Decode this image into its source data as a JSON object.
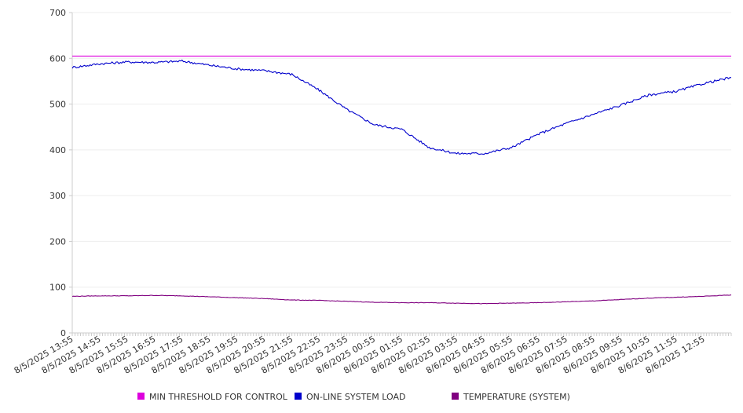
{
  "chart_data": {
    "type": "line",
    "title": "",
    "xlabel": "",
    "ylabel": "",
    "ylim": [
      0,
      700
    ],
    "y_ticks": [
      0,
      100,
      200,
      300,
      400,
      500,
      600,
      700
    ],
    "x_tick_labels": [
      "8/5/2025 13:55",
      "8/5/2025 14:55",
      "8/5/2025 15:55",
      "8/5/2025 16:55",
      "8/5/2025 17:55",
      "8/5/2025 18:55",
      "8/5/2025 19:55",
      "8/5/2025 20:55",
      "8/5/2025 21:55",
      "8/5/2025 22:55",
      "8/5/2025 23:55",
      "8/6/2025 00:55",
      "8/6/2025 01:55",
      "8/6/2025 02:55",
      "8/6/2025 03:55",
      "8/6/2025 04:55",
      "8/6/2025 05:55",
      "8/6/2025 06:55",
      "8/6/2025 07:55",
      "8/6/2025 08:55",
      "8/6/2025 09:55",
      "8/6/2025 10:55",
      "8/6/2025 11:55",
      "8/6/2025 12:55"
    ],
    "x": [
      "8/5/2025 13:55",
      "8/5/2025 14:55",
      "8/5/2025 15:55",
      "8/5/2025 16:55",
      "8/5/2025 17:55",
      "8/5/2025 18:55",
      "8/5/2025 19:55",
      "8/5/2025 20:55",
      "8/5/2025 21:55",
      "8/5/2025 22:55",
      "8/5/2025 23:55",
      "8/6/2025 00:55",
      "8/6/2025 01:55",
      "8/6/2025 02:55",
      "8/6/2025 03:55",
      "8/6/2025 04:55",
      "8/6/2025 05:55",
      "8/6/2025 06:55",
      "8/6/2025 07:55",
      "8/6/2025 08:55",
      "8/6/2025 09:55",
      "8/6/2025 10:55",
      "8/6/2025 11:55",
      "8/6/2025 12:55",
      "8/6/2025 13:55"
    ],
    "series": [
      {
        "name": "MIN THRESHOLD FOR CONTROL",
        "color": "#dd00dd",
        "values": [
          605,
          605,
          605,
          605,
          605,
          605,
          605,
          605,
          605,
          605,
          605,
          605,
          605,
          605,
          605,
          605,
          605,
          605,
          605,
          605,
          605,
          605,
          605,
          605,
          605
        ]
      },
      {
        "name": "ON-LINE SYSTEM LOAD",
        "color": "#0000cc",
        "values": [
          580,
          588,
          592,
          591,
          594,
          585,
          577,
          573,
          565,
          530,
          488,
          455,
          445,
          405,
          392,
          392,
          405,
          435,
          458,
          478,
          498,
          520,
          528,
          545,
          558
        ]
      },
      {
        "name": "TEMPERATURE (SYSTEM)",
        "color": "#800080",
        "values": [
          80,
          81,
          81,
          82,
          81,
          79,
          77,
          75,
          72,
          71,
          69,
          67,
          66,
          66,
          65,
          64,
          65,
          66,
          68,
          70,
          73,
          76,
          78,
          80,
          83
        ]
      }
    ],
    "legend": {
      "placement": "bottom",
      "entries": [
        "MIN THRESHOLD FOR CONTROL",
        "ON-LINE SYSTEM LOAD",
        "TEMPERATURE (SYSTEM)"
      ]
    },
    "grid": true,
    "axis_color": "#cccccc",
    "grid_color": "#eeeeee"
  }
}
